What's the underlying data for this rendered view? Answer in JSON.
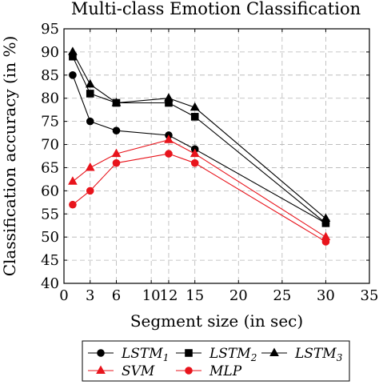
{
  "chart_data": {
    "type": "line",
    "title": "Multi-class Emotion Classification",
    "xlabel": "Segment size (in sec)",
    "ylabel": "Classification accuracy (in %)",
    "xlim": [
      0,
      35
    ],
    "ylim": [
      40,
      95
    ],
    "xticks": [
      0,
      3,
      6,
      10,
      12,
      15,
      20,
      25,
      30,
      35
    ],
    "yticks": [
      40,
      45,
      50,
      55,
      60,
      65,
      70,
      75,
      80,
      85,
      90,
      95
    ],
    "grid": true,
    "legend_position": "bottom",
    "x": [
      1,
      3,
      6,
      12,
      15,
      30
    ],
    "series": [
      {
        "name": "LSTM",
        "name_sub": "1",
        "marker": "circle",
        "color": "#000000",
        "values": [
          85,
          75,
          73,
          72,
          69,
          53
        ]
      },
      {
        "name": "LSTM",
        "name_sub": "2",
        "marker": "square",
        "color": "#000000",
        "values": [
          89,
          81,
          79,
          79,
          76,
          53
        ]
      },
      {
        "name": "LSTM",
        "name_sub": "3",
        "marker": "triangle",
        "color": "#000000",
        "values": [
          90,
          83,
          79,
          80,
          78,
          54
        ]
      },
      {
        "name": "SVM",
        "name_sub": "",
        "marker": "triangle",
        "color": "#e8141c",
        "values": [
          62,
          65,
          68,
          71,
          68,
          50
        ]
      },
      {
        "name": "MLP",
        "name_sub": "",
        "marker": "circle",
        "color": "#e8141c",
        "values": [
          57,
          60,
          66,
          68,
          66,
          49
        ]
      }
    ]
  }
}
